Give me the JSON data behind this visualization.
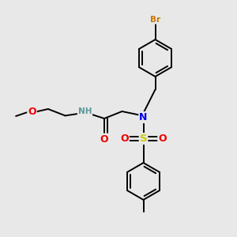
{
  "background_color": "#e8e8e8",
  "fig_size": [
    3.0,
    3.0
  ],
  "dpi": 100,
  "atom_colors": {
    "C": "#000000",
    "H": "#5a9898",
    "N": "#0000ee",
    "O": "#ee0000",
    "S": "#cccc00",
    "Br": "#cc7700"
  },
  "bond_color": "#000000",
  "bond_width": 1.4
}
